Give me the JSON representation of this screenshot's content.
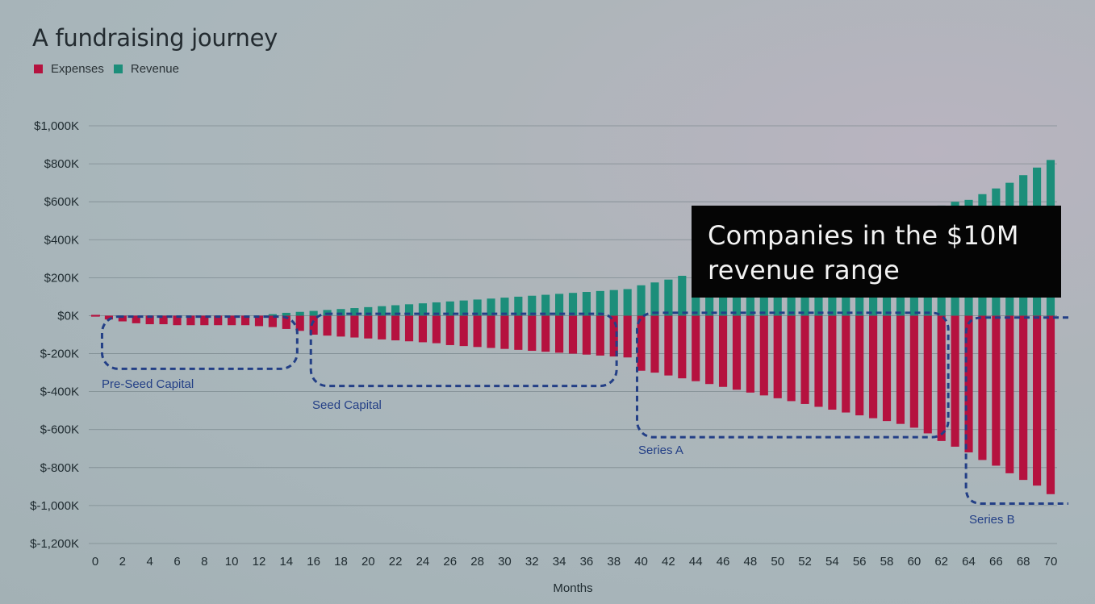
{
  "chart_data": {
    "type": "bar",
    "title": "A fundraising journey",
    "xlabel": "Months",
    "ylabel": "",
    "ylim": [
      -1200,
      1000
    ],
    "xlim": [
      0,
      70
    ],
    "y_ticks": [
      {
        "value": 1000,
        "label": "$1,000K"
      },
      {
        "value": 800,
        "label": "$800K"
      },
      {
        "value": 600,
        "label": "$600K"
      },
      {
        "value": 400,
        "label": "$400K"
      },
      {
        "value": 200,
        "label": "$200K"
      },
      {
        "value": 0,
        "label": "$0K"
      },
      {
        "value": -200,
        "label": "$-200K"
      },
      {
        "value": -400,
        "label": "$-400K"
      },
      {
        "value": -600,
        "label": "$-600K"
      },
      {
        "value": -800,
        "label": "$-800K"
      },
      {
        "value": -1000,
        "label": "$-1,000K"
      },
      {
        "value": -1200,
        "label": "$-1,200K"
      }
    ],
    "x_ticks": [
      0,
      2,
      4,
      6,
      8,
      10,
      12,
      14,
      16,
      18,
      20,
      22,
      24,
      26,
      28,
      30,
      32,
      34,
      36,
      38,
      40,
      42,
      44,
      46,
      48,
      50,
      52,
      54,
      56,
      58,
      60,
      62,
      64,
      66,
      68,
      70
    ],
    "grid": true,
    "legend": "top-left",
    "x": [
      0,
      1,
      2,
      3,
      4,
      5,
      6,
      7,
      8,
      9,
      10,
      11,
      12,
      13,
      14,
      15,
      16,
      17,
      18,
      19,
      20,
      21,
      22,
      23,
      24,
      25,
      26,
      27,
      28,
      29,
      30,
      31,
      32,
      33,
      34,
      35,
      36,
      37,
      38,
      39,
      40,
      41,
      42,
      43,
      44,
      45,
      46,
      47,
      48,
      49,
      50,
      51,
      52,
      53,
      54,
      55,
      56,
      57,
      58,
      59,
      60,
      61,
      62,
      63,
      64,
      65,
      66,
      67,
      68,
      69,
      70
    ],
    "series": [
      {
        "name": "Expenses",
        "color": "#b5123f",
        "values": [
          -5,
          -20,
          -30,
          -40,
          -45,
          -45,
          -50,
          -50,
          -50,
          -50,
          -50,
          -50,
          -55,
          -60,
          -70,
          -80,
          -100,
          -105,
          -110,
          -115,
          -120,
          -125,
          -130,
          -135,
          -140,
          -145,
          -155,
          -160,
          -165,
          -170,
          -175,
          -180,
          -185,
          -190,
          -195,
          -200,
          -205,
          -210,
          -215,
          -220,
          -290,
          -300,
          -315,
          -330,
          -345,
          -360,
          -375,
          -390,
          -405,
          -420,
          -435,
          -450,
          -465,
          -480,
          -495,
          -510,
          -525,
          -540,
          -555,
          -570,
          -590,
          -620,
          -660,
          -690,
          -720,
          -760,
          -790,
          -830,
          -865,
          -895,
          -940
        ]
      },
      {
        "name": "Revenue",
        "color": "#1c8e7a",
        "values": [
          0,
          0,
          0,
          0,
          0,
          0,
          0,
          0,
          0,
          0,
          0,
          0,
          0,
          8,
          15,
          20,
          25,
          30,
          35,
          40,
          45,
          50,
          55,
          60,
          65,
          70,
          75,
          80,
          85,
          90,
          95,
          100,
          105,
          110,
          115,
          120,
          125,
          130,
          135,
          140,
          160,
          175,
          190,
          210,
          220,
          240,
          260,
          280,
          300,
          320,
          340,
          360,
          380,
          400,
          420,
          440,
          460,
          480,
          500,
          520,
          540,
          560,
          580,
          600,
          610,
          640,
          670,
          700,
          740,
          780,
          820
        ]
      }
    ],
    "annotations": [
      {
        "type": "callout",
        "text": "Companies in the $10M revenue range"
      }
    ],
    "phases": [
      {
        "label": "Pre-Seed Capital",
        "months": [
          0.5,
          14.8
        ],
        "y_range": [
          -280,
          -5
        ]
      },
      {
        "label": "Seed Capital",
        "months": [
          15.8,
          38.2
        ],
        "y_range": [
          -370,
          10
        ]
      },
      {
        "label": "Series A",
        "months": [
          39.7,
          62.5
        ],
        "y_range": [
          -640,
          15
        ]
      },
      {
        "label": "Series B",
        "months": [
          63.8,
          71.3
        ],
        "y_range": [
          -990,
          -10
        ]
      }
    ]
  },
  "legend": {
    "items": [
      {
        "label": "Expenses",
        "color": "#b5123f"
      },
      {
        "label": "Revenue",
        "color": "#1c8e7a"
      }
    ]
  },
  "annotation_box": {
    "line1": "Companies in the $10M",
    "line2": "revenue range"
  },
  "colors": {
    "phase_outline": "#233f86",
    "grid": "#6c7a80",
    "axis_text": "#1e2a2f"
  }
}
